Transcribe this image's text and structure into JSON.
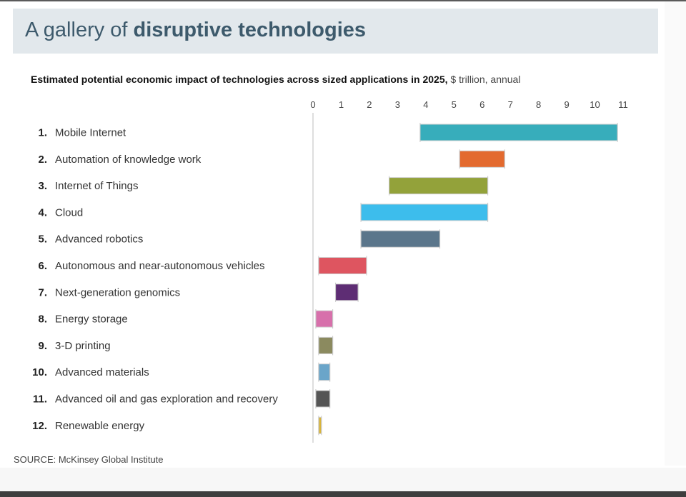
{
  "header": {
    "title_light": "A gallery of ",
    "title_bold": "disruptive technologies"
  },
  "subtitle": {
    "bold": "Estimated potential economic impact of technologies across sized applications in 2025",
    "sep": ",",
    "light": " $ trillion, annual"
  },
  "source": "SOURCE: McKinsey Global Institute",
  "chart_data": {
    "type": "bar",
    "orientation": "horizontal",
    "style": "range",
    "xlim": [
      0,
      11
    ],
    "xticks": [
      "0",
      "1",
      "2",
      "3",
      "4",
      "5",
      "6",
      "7",
      "8",
      "9",
      "10",
      "11"
    ],
    "categories": [
      {
        "rank": "1.",
        "label": "Mobile Internet",
        "low": 3.8,
        "high": 10.8,
        "color": "#37adbb"
      },
      {
        "rank": "2.",
        "label": "Automation of knowledge work",
        "low": 5.2,
        "high": 6.8,
        "color": "#e36a2f"
      },
      {
        "rank": "3.",
        "label": "Internet of Things",
        "low": 2.7,
        "high": 6.2,
        "color": "#93a23a"
      },
      {
        "rank": "4.",
        "label": "Cloud",
        "low": 1.7,
        "high": 6.2,
        "color": "#3dbdec"
      },
      {
        "rank": "5.",
        "label": "Advanced robotics",
        "low": 1.7,
        "high": 4.5,
        "color": "#5b768b"
      },
      {
        "rank": "6.",
        "label": "Autonomous and near-autonomous vehicles",
        "low": 0.2,
        "high": 1.9,
        "color": "#de5560"
      },
      {
        "rank": "7.",
        "label": "Next-generation genomics",
        "low": 0.8,
        "high": 1.6,
        "color": "#5e2d74"
      },
      {
        "rank": "8.",
        "label": "Energy storage",
        "low": 0.1,
        "high": 0.7,
        "color": "#d770ab"
      },
      {
        "rank": "9.",
        "label": "3-D printing",
        "low": 0.2,
        "high": 0.7,
        "color": "#8b8a5f"
      },
      {
        "rank": "10.",
        "label": "Advanced materials",
        "low": 0.2,
        "high": 0.6,
        "color": "#6aa5c9"
      },
      {
        "rank": "11.",
        "label": "Advanced oil and gas exploration and recovery",
        "low": 0.1,
        "high": 0.6,
        "color": "#555555"
      },
      {
        "rank": "12.",
        "label": "Renewable energy",
        "low": 0.2,
        "high": 0.3,
        "color": "#d8b43a"
      }
    ],
    "grid": false
  }
}
